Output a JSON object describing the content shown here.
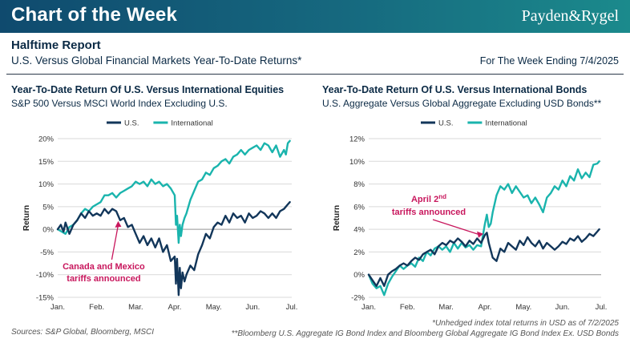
{
  "header": {
    "banner_title": "Chart of the Week",
    "brand": "Payden&Rygel",
    "report_title": "Halftime Report",
    "report_subtitle": "U.S. Versus Global Financial Markets Year-To-Date Returns*",
    "week_label": "For The Week Ending 7/4/2025"
  },
  "footer": {
    "sources": "Sources: S&P Global, Bloomberg, MSCI",
    "note1": "*Unhedged index total returns in USD as of 7/2/2025",
    "note2": "**Bloomberg U.S. Aggregate IG Bond Index and Bloomberg Global Aggregate IG Bond Index Ex. USD Bonds"
  },
  "colors": {
    "us": "#12365a",
    "international": "#1ab4ad",
    "annotation": "#c8175d",
    "grid": "#d9d9d9",
    "banner_start": "#0f4a6e",
    "banner_end": "#1b8a8c"
  },
  "chart_data": [
    {
      "type": "line",
      "title": "Year-To-Date Return Of U.S. Versus International Equities",
      "subtitle": "S&P 500 Versus MSCI World Index Excluding U.S.",
      "ylabel": "Return",
      "legend_position": "top-center",
      "grid": true,
      "ylim": [
        -15,
        20
      ],
      "yticks": [
        -15,
        -10,
        -5,
        0,
        5,
        10,
        15,
        20
      ],
      "ytick_labels": [
        "-15%",
        "-10%",
        "-5%",
        "0%",
        "5%",
        "10%",
        "15%",
        "20%"
      ],
      "xlim": [
        0,
        6
      ],
      "xticks": [
        0,
        1,
        2,
        3,
        4,
        5,
        6
      ],
      "xtick_labels": [
        "Jan.",
        "Feb.",
        "Mar.",
        "Apr.",
        "May.",
        "Jun.",
        "Jul."
      ],
      "series": [
        {
          "name": "U.S.",
          "x": [
            0,
            0.08,
            0.15,
            0.2,
            0.3,
            0.4,
            0.5,
            0.6,
            0.7,
            0.8,
            0.9,
            1.0,
            1.1,
            1.2,
            1.3,
            1.4,
            1.5,
            1.6,
            1.7,
            1.8,
            1.9,
            2.0,
            2.1,
            2.2,
            2.3,
            2.4,
            2.5,
            2.6,
            2.7,
            2.8,
            2.9,
            3.0,
            3.03,
            3.06,
            3.1,
            3.13,
            3.16,
            3.2,
            3.25,
            3.3,
            3.4,
            3.5,
            3.6,
            3.7,
            3.8,
            3.9,
            4.0,
            4.1,
            4.2,
            4.3,
            4.4,
            4.5,
            4.6,
            4.7,
            4.8,
            4.9,
            5.0,
            5.1,
            5.2,
            5.3,
            5.4,
            5.5,
            5.6,
            5.7,
            5.8,
            5.9,
            5.95
          ],
          "y": [
            0,
            1.0,
            -0.5,
            1.5,
            -1.0,
            1.0,
            2.0,
            3.5,
            2.5,
            4.0,
            3.0,
            3.5,
            3.0,
            4.5,
            3.5,
            4.5,
            4.0,
            2.0,
            2.5,
            0.5,
            1.0,
            -1.0,
            -3.0,
            -1.5,
            -3.5,
            -2.0,
            -4.0,
            -2.0,
            -5.0,
            -3.5,
            -7.0,
            -6.0,
            -12.0,
            -6.5,
            -14.5,
            -8.5,
            -13.0,
            -9.5,
            -11.5,
            -10.0,
            -8.0,
            -9.0,
            -5.5,
            -3.5,
            -1.0,
            -2.0,
            0.5,
            1.5,
            1.0,
            3.0,
            1.5,
            3.5,
            2.5,
            3.0,
            1.5,
            3.5,
            2.5,
            3.0,
            4.0,
            3.5,
            2.5,
            3.5,
            2.5,
            4.0,
            4.5,
            5.5,
            6.0
          ]
        },
        {
          "name": "International",
          "x": [
            0,
            0.1,
            0.2,
            0.3,
            0.4,
            0.5,
            0.6,
            0.7,
            0.8,
            0.9,
            1.0,
            1.1,
            1.2,
            1.3,
            1.4,
            1.5,
            1.6,
            1.7,
            1.8,
            1.9,
            2.0,
            2.1,
            2.2,
            2.3,
            2.4,
            2.5,
            2.6,
            2.7,
            2.8,
            2.9,
            3.0,
            3.03,
            3.06,
            3.1,
            3.13,
            3.16,
            3.2,
            3.25,
            3.3,
            3.4,
            3.5,
            3.6,
            3.7,
            3.8,
            3.9,
            4.0,
            4.1,
            4.2,
            4.3,
            4.4,
            4.5,
            4.6,
            4.7,
            4.8,
            4.9,
            5.0,
            5.1,
            5.2,
            5.3,
            5.4,
            5.5,
            5.6,
            5.7,
            5.8,
            5.85,
            5.9,
            5.95
          ],
          "y": [
            0,
            -0.5,
            -1.0,
            0.5,
            1.0,
            2.0,
            3.5,
            4.5,
            4.0,
            5.0,
            5.5,
            6.0,
            7.5,
            7.5,
            8.0,
            7.0,
            8.0,
            8.5,
            9.0,
            9.5,
            10.5,
            10.0,
            10.5,
            9.5,
            11.0,
            10.0,
            10.5,
            9.5,
            10.0,
            9.0,
            7.5,
            1.0,
            3.0,
            -3.0,
            1.0,
            -1.5,
            1.0,
            2.5,
            3.5,
            6.5,
            8.5,
            10.5,
            11.0,
            12.5,
            12.0,
            13.5,
            14.0,
            15.0,
            15.5,
            14.5,
            16.0,
            16.5,
            17.5,
            16.5,
            17.5,
            18.0,
            18.5,
            17.5,
            19.0,
            18.5,
            17.0,
            18.5,
            16.0,
            17.5,
            16.5,
            19.0,
            19.5
          ]
        }
      ],
      "annotations": [
        {
          "text_line1": "Canada and Mexico",
          "text_line2": "tariffs announced",
          "x": 1.55,
          "y": 2.0
        }
      ]
    },
    {
      "type": "line",
      "title": "Year-To-Date Return Of U.S. Versus International Bonds",
      "subtitle": "U.S. Aggregate Versus Global Aggregate Excluding USD Bonds**",
      "ylabel": "Return",
      "legend_position": "top-center",
      "grid": true,
      "ylim": [
        -2,
        12
      ],
      "yticks": [
        -2,
        0,
        2,
        4,
        6,
        8,
        10,
        12
      ],
      "ytick_labels": [
        "-2%",
        "0%",
        "2%",
        "4%",
        "6%",
        "8%",
        "10%",
        "12%"
      ],
      "xlim": [
        0,
        6
      ],
      "xticks": [
        0,
        1,
        2,
        3,
        4,
        5,
        6
      ],
      "xtick_labels": [
        "Jan.",
        "Feb.",
        "Mar.",
        "Apr.",
        "May.",
        "Jun.",
        "Jul."
      ],
      "series": [
        {
          "name": "U.S.",
          "x": [
            0,
            0.1,
            0.2,
            0.3,
            0.4,
            0.5,
            0.6,
            0.7,
            0.8,
            0.9,
            1.0,
            1.1,
            1.2,
            1.3,
            1.4,
            1.5,
            1.6,
            1.7,
            1.8,
            1.9,
            2.0,
            2.1,
            2.2,
            2.3,
            2.4,
            2.5,
            2.6,
            2.7,
            2.8,
            2.9,
            3.0,
            3.05,
            3.1,
            3.2,
            3.3,
            3.4,
            3.5,
            3.6,
            3.7,
            3.8,
            3.9,
            4.0,
            4.1,
            4.2,
            4.3,
            4.4,
            4.5,
            4.6,
            4.7,
            4.8,
            4.9,
            5.0,
            5.1,
            5.2,
            5.3,
            5.4,
            5.5,
            5.6,
            5.7,
            5.8,
            5.9,
            5.95
          ],
          "y": [
            0,
            -0.5,
            -1.0,
            -0.3,
            -1.0,
            0.0,
            0.3,
            0.5,
            0.8,
            1.0,
            0.8,
            1.2,
            1.5,
            1.3,
            1.8,
            2.0,
            2.2,
            1.8,
            2.5,
            2.8,
            2.6,
            3.0,
            2.8,
            3.2,
            2.9,
            2.5,
            3.0,
            2.7,
            3.2,
            2.8,
            3.5,
            3.7,
            2.8,
            1.5,
            1.2,
            2.3,
            2.0,
            2.8,
            2.5,
            2.2,
            3.0,
            2.6,
            3.3,
            2.8,
            2.5,
            3.0,
            2.3,
            2.8,
            2.5,
            2.2,
            2.5,
            2.9,
            2.7,
            3.2,
            3.0,
            3.4,
            2.9,
            3.2,
            3.6,
            3.4,
            3.8,
            4.0
          ]
        },
        {
          "name": "International",
          "x": [
            0,
            0.1,
            0.2,
            0.3,
            0.4,
            0.5,
            0.6,
            0.7,
            0.8,
            0.9,
            1.0,
            1.1,
            1.2,
            1.3,
            1.4,
            1.5,
            1.6,
            1.7,
            1.8,
            1.9,
            2.0,
            2.1,
            2.2,
            2.3,
            2.4,
            2.5,
            2.6,
            2.7,
            2.8,
            2.9,
            3.0,
            3.05,
            3.1,
            3.15,
            3.2,
            3.3,
            3.4,
            3.5,
            3.6,
            3.7,
            3.8,
            3.9,
            4.0,
            4.1,
            4.2,
            4.3,
            4.4,
            4.5,
            4.6,
            4.7,
            4.8,
            4.9,
            5.0,
            5.1,
            5.2,
            5.3,
            5.4,
            5.5,
            5.6,
            5.7,
            5.8,
            5.9,
            5.95
          ],
          "y": [
            0,
            -0.8,
            -1.2,
            -1.0,
            -1.8,
            -0.8,
            -0.2,
            0.3,
            0.8,
            0.5,
            0.8,
            1.0,
            0.7,
            1.5,
            1.2,
            2.0,
            1.7,
            2.3,
            2.5,
            2.2,
            2.5,
            2.0,
            2.8,
            2.3,
            2.8,
            2.4,
            2.6,
            2.2,
            2.6,
            2.5,
            4.5,
            5.3,
            4.2,
            4.5,
            5.5,
            7.0,
            7.8,
            7.5,
            8.0,
            7.2,
            7.8,
            7.3,
            6.8,
            7.0,
            6.3,
            6.8,
            6.2,
            5.5,
            6.8,
            7.2,
            7.8,
            7.5,
            8.3,
            7.8,
            8.7,
            8.3,
            9.3,
            8.5,
            9.0,
            8.6,
            9.7,
            9.8,
            10.0
          ]
        }
      ],
      "annotations": [
        {
          "text_pre": "April 2",
          "text_sup": "nd",
          "text_line2": "tariffs announced",
          "x": 2.98,
          "y": 3.6
        }
      ]
    }
  ]
}
